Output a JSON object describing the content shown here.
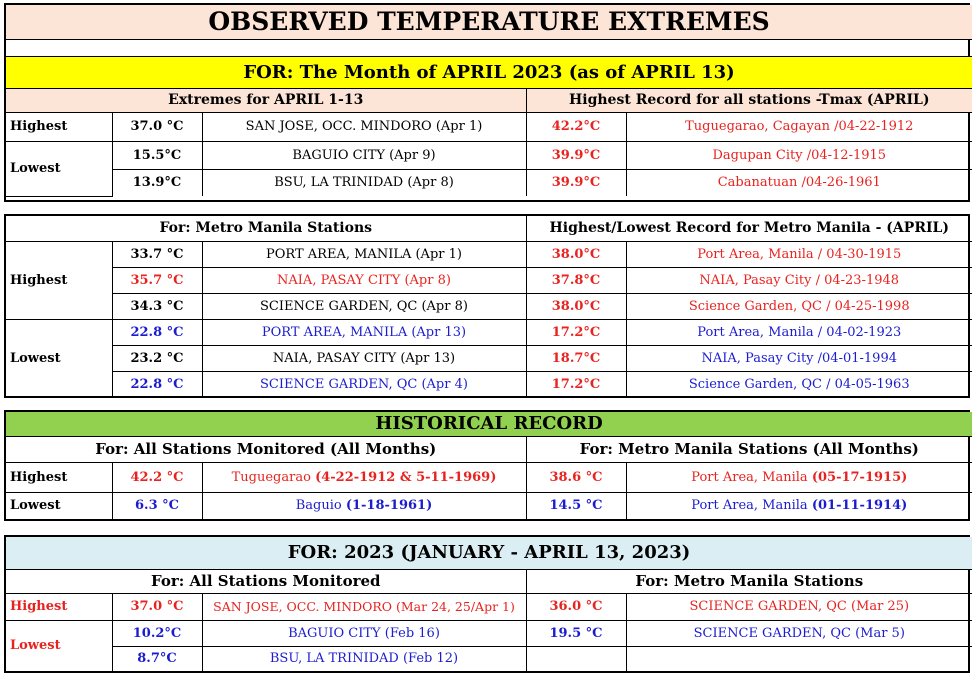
{
  "title": "OBSERVED TEMPERATURE EXTREMES",
  "month_banner": "FOR:  The Month of APRIL 2023 (as of  APRIL 13)",
  "colors": {
    "yellow": "#ffff00",
    "peach": "#fce4d6",
    "green": "#92d050",
    "lightblue": "#dbeef4",
    "red": "#e8231f",
    "blue": "#1b1ccf"
  },
  "section1": {
    "left_header": "Extremes for APRIL 1-13",
    "right_header": "Highest Record for all stations -Tmax (APRIL)",
    "label_highest": "Highest",
    "label_lowest": "Lowest",
    "rows": [
      {
        "val": "37.0 °C",
        "place": "SAN JOSE, OCC. MINDORO  (Apr 1)",
        "rec": "42.2°C",
        "rec_place": "Tuguegarao, Cagayan /04-22-1912"
      },
      {
        "val": "15.5°C",
        "place": "BAGUIO CITY  (Apr 9)",
        "rec": "39.9°C",
        "rec_place": "Dagupan City /04-12-1915"
      },
      {
        "val": "13.9°C",
        "place": "BSU, LA TRINIDAD (Apr 8)",
        "rec": "39.9°C",
        "rec_place": "Cabanatuan /04-26-1961"
      }
    ]
  },
  "section2": {
    "left_header": "For: Metro Manila Stations",
    "right_header": "Highest/Lowest Record for Metro Manila - (APRIL)",
    "label_highest": "Highest",
    "label_lowest": "Lowest",
    "rows": [
      {
        "val": "33.7 °C",
        "place": "PORT AREA, MANILA (Apr 1)",
        "rec": "38.0°C",
        "rec_place": "Port Area, Manila / 04-30-1915"
      },
      {
        "val": "35.7 °C",
        "place": "NAIA, PASAY CITY (Apr 8)",
        "rec": "37.8°C",
        "rec_place": "NAIA, Pasay City / 04-23-1948"
      },
      {
        "val": "34.3 °C",
        "place": "SCIENCE GARDEN, QC (Apr 8)",
        "rec": "38.0°C",
        "rec_place": "Science Garden, QC / 04-25-1998"
      },
      {
        "val": "22.8 °C",
        "place": "PORT AREA, MANILA (Apr 13)",
        "rec": "17.2°C",
        "rec_place": "Port Area, Manila / 04-02-1923"
      },
      {
        "val": "23.2 °C",
        "place": "NAIA, PASAY CITY (Apr 13)",
        "rec": "18.7°C",
        "rec_place": "NAIA, Pasay City /04-01-1994"
      },
      {
        "val": "22.8 °C",
        "place": "SCIENCE GARDEN, QC (Apr 4)",
        "rec": "17.2°C",
        "rec_place": "Science Garden, QC / 04-05-1963"
      }
    ]
  },
  "section3": {
    "banner": "HISTORICAL RECORD",
    "left_header": "For:  All Stations Monitored (All Months)",
    "right_header": "For: Metro Manila Stations (All Months)",
    "label_highest": "Highest",
    "label_lowest": "Lowest",
    "highest": {
      "val": "42.2 °C",
      "place": "Tuguegarao",
      "dates": "(4-22-1912 & 5-11-1969)",
      "mm_val": "38.6 °C",
      "mm_place": "Port Area, Manila",
      "mm_dates": "(05-17-1915)"
    },
    "lowest": {
      "val": "6.3 °C",
      "place": "Baguio",
      "dates": "(1-18-1961)",
      "mm_val": "14.5 °C",
      "mm_place": "Port Area, Manila",
      "mm_dates": "(01-11-1914)"
    }
  },
  "section4": {
    "banner": "FOR:    2023 (JANUARY - APRIL 13, 2023)",
    "left_header": "For:  All Stations Monitored",
    "right_header": "For: Metro Manila Stations",
    "label_highest": "Highest",
    "label_lowest": "Lowest",
    "rows": [
      {
        "val": "37.0 °C",
        "place": "SAN JOSE, OCC. MINDORO (Mar 24, 25/Apr 1)",
        "mm_val": "36.0 °C",
        "mm_place": "SCIENCE GARDEN, QC (Mar 25)"
      },
      {
        "val": "10.2°C",
        "place": "BAGUIO CITY  (Feb 16)",
        "mm_val": "19.5 °C",
        "mm_place": "SCIENCE GARDEN, QC (Mar 5)"
      },
      {
        "val": "8.7°C",
        "place": "BSU, LA TRINIDAD (Feb 12)",
        "mm_val": "",
        "mm_place": ""
      }
    ]
  }
}
